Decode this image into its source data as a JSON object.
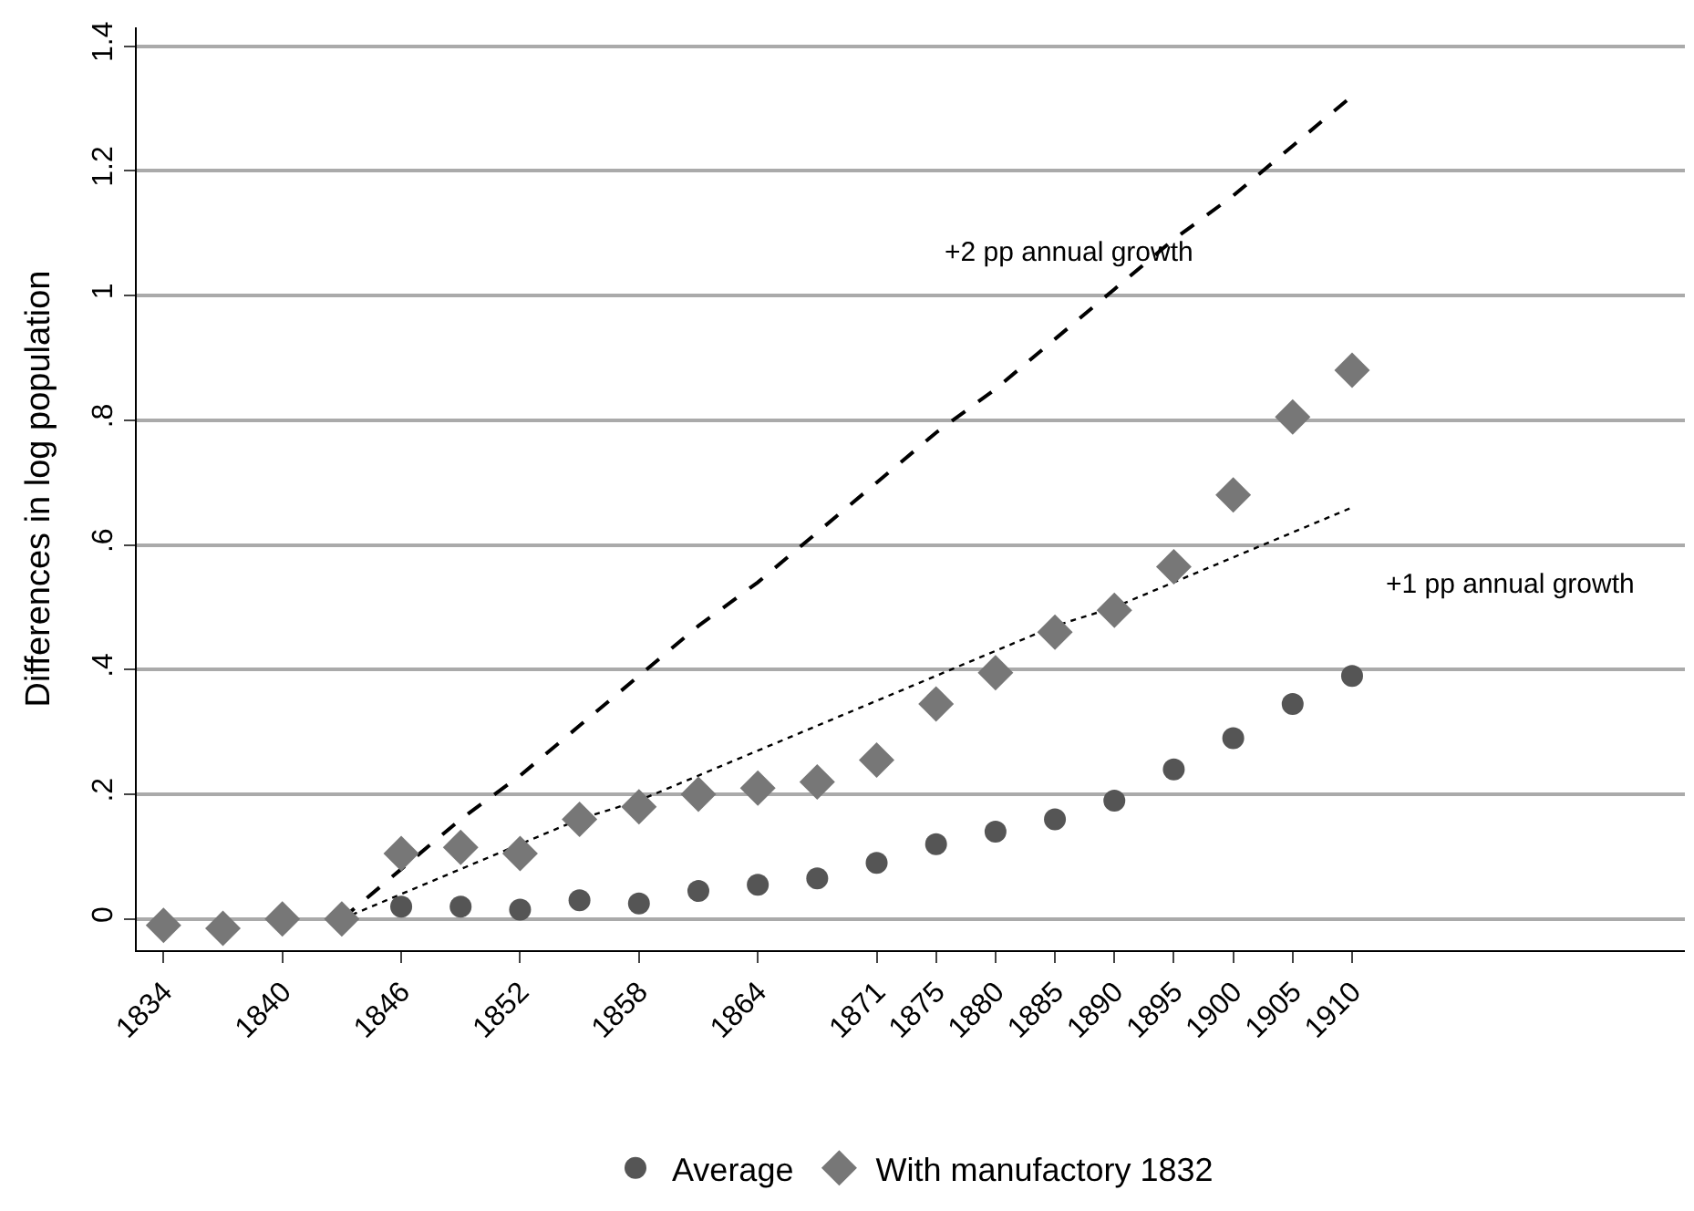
{
  "chart_data": {
    "type": "scatter",
    "ylabel": "Differences in log population",
    "categories": [
      "1834",
      null,
      "1840",
      null,
      "1846",
      null,
      "1852",
      null,
      "1858",
      null,
      "1864",
      null,
      "1871",
      "1875",
      "1880",
      "1885",
      "1890",
      "1895",
      "1900",
      "1905",
      "1910"
    ],
    "series": [
      {
        "name": "Average",
        "type": "scatter",
        "marker": "circle",
        "color": "#555555",
        "values": [
          null,
          null,
          null,
          null,
          0.02,
          0.02,
          0.015,
          0.03,
          0.025,
          0.045,
          0.055,
          0.065,
          0.09,
          0.12,
          0.14,
          0.16,
          0.19,
          0.24,
          0.29,
          0.345,
          0.39
        ]
      },
      {
        "name": "With manufactory 1832",
        "type": "scatter",
        "marker": "diamond",
        "color": "#777777",
        "values": [
          -0.01,
          -0.015,
          0,
          0,
          0.105,
          0.115,
          0.105,
          0.16,
          0.18,
          0.2,
          0.21,
          0.22,
          0.255,
          0.345,
          0.395,
          0.46,
          0.495,
          0.565,
          0.68,
          0.805,
          0.88
        ]
      },
      {
        "type": "line",
        "line_style": "dashed",
        "color": "#000000",
        "values": [
          null,
          null,
          null,
          0,
          0.08,
          0.16,
          0.23,
          0.31,
          0.39,
          0.47,
          0.54,
          0.62,
          0.7,
          0.78,
          0.85,
          0.93,
          1.01,
          1.09,
          1.16,
          1.24,
          1.32
        ]
      },
      {
        "type": "line",
        "line_style": "dotted",
        "color": "#000000",
        "values": [
          null,
          null,
          null,
          0,
          0.04,
          0.08,
          0.12,
          0.16,
          0.19,
          0.23,
          0.27,
          0.31,
          0.35,
          0.39,
          0.43,
          0.47,
          0.5,
          0.54,
          0.58,
          0.62,
          0.66
        ]
      }
    ],
    "annotations": [
      "+2 pp annual growth",
      "+1 pp annual growth"
    ],
    "ylim": [
      -0.05,
      1.43
    ],
    "yticks": [
      0,
      {
        "value": 0.2,
        "label": ".2"
      },
      {
        "value": 0.4,
        "label": ".4"
      },
      {
        "value": 0.6,
        "label": ".6"
      },
      {
        "value": 0.8,
        "label": ".8"
      },
      1,
      {
        "value": 1.2,
        "label": "1.2"
      },
      {
        "value": 1.4,
        "label": "1.4"
      }
    ],
    "grid": "y",
    "legend": "bottom"
  }
}
